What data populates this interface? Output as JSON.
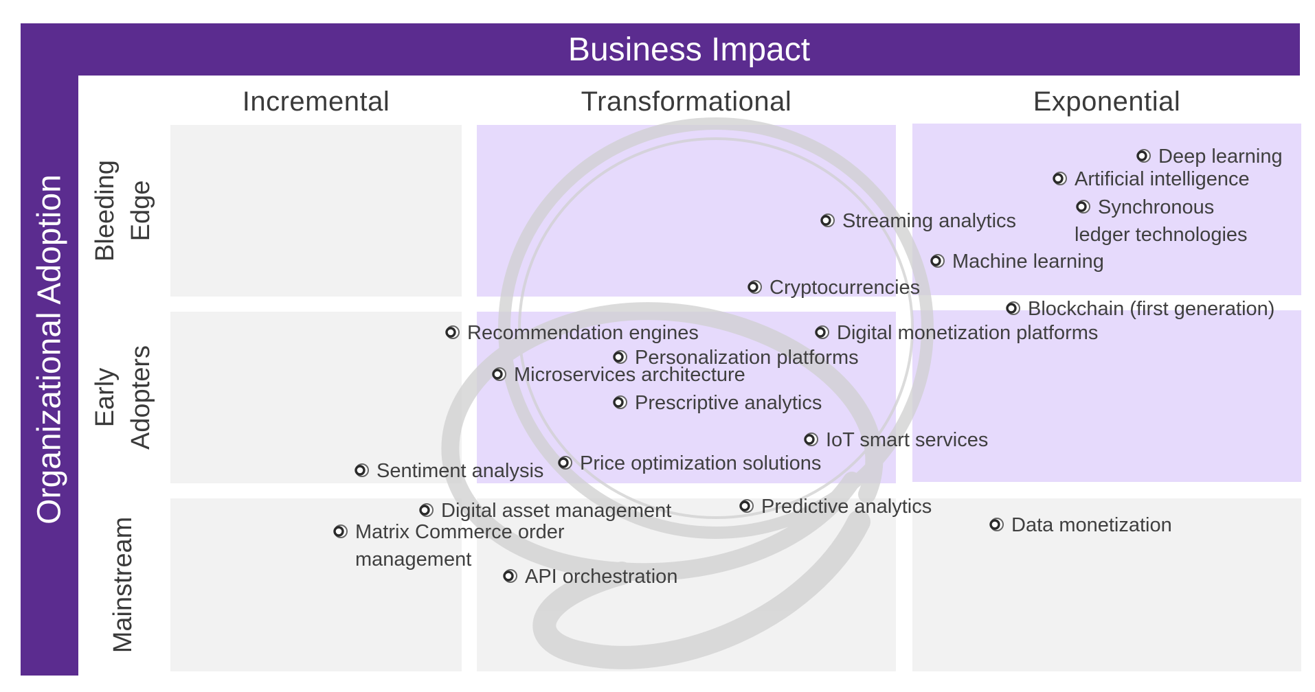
{
  "colors": {
    "banner": "#5b2c8f",
    "cell_grey": "#f2f2f2",
    "cell_purple": "#e6dafc",
    "watermark": "#d0d0d0"
  },
  "header": {
    "title": "Business Impact"
  },
  "side": {
    "title": "Organizational Adoption"
  },
  "columns": [
    "Incremental",
    "Transformational",
    "Exponential"
  ],
  "rows": [
    {
      "line1": "Bleeding",
      "line2": "Edge"
    },
    {
      "line1": "Early",
      "line2": "Adopters"
    },
    {
      "line1": "Mainstream",
      "line2": ""
    }
  ],
  "cells": [
    [
      "grey",
      "purple",
      "purple"
    ],
    [
      "grey",
      "purple",
      "purple"
    ],
    [
      "grey",
      "grey",
      "grey"
    ]
  ],
  "items": [
    {
      "id": "deep-learning",
      "line1": "Deep learning",
      "line2": "",
      "bullet": "ring-icon"
    },
    {
      "id": "artificial-intelligence",
      "line1": "Artificial intelligence",
      "line2": "",
      "bullet": "ring-icon"
    },
    {
      "id": "synchronous-ledger",
      "line1": "Synchronous",
      "line2": "ledger technologies",
      "bullet": "ring-icon"
    },
    {
      "id": "streaming-analytics",
      "line1": "Streaming analytics",
      "line2": "",
      "bullet": "ring-icon"
    },
    {
      "id": "machine-learning",
      "line1": "Machine learning",
      "line2": "",
      "bullet": "ring-icon"
    },
    {
      "id": "cryptocurrencies",
      "line1": "Cryptocurrencies",
      "line2": "",
      "bullet": "ring-icon"
    },
    {
      "id": "blockchain",
      "line1": "Blockchain (first generation)",
      "line2": "",
      "bullet": "ring-icon"
    },
    {
      "id": "recommendation-engines",
      "line1": "Recommendation engines",
      "line2": "",
      "bullet": "ring-icon"
    },
    {
      "id": "digital-monetization",
      "line1": "Digital monetization platforms",
      "line2": "",
      "bullet": "ring-icon"
    },
    {
      "id": "personalization-platforms",
      "line1": "Personalization platforms",
      "line2": "",
      "bullet": "ring-icon"
    },
    {
      "id": "microservices-architecture",
      "line1": "Microservices architecture",
      "line2": "",
      "bullet": "ring-icon"
    },
    {
      "id": "prescriptive-analytics",
      "line1": "Prescriptive analytics",
      "line2": "",
      "bullet": "ring-icon"
    },
    {
      "id": "iot-smart-services",
      "line1": "IoT smart services",
      "line2": "",
      "bullet": "ring-icon"
    },
    {
      "id": "sentiment-analysis",
      "line1": "Sentiment analysis",
      "line2": "",
      "bullet": "ring-icon"
    },
    {
      "id": "price-optimization",
      "line1": "Price optimization solutions",
      "line2": "",
      "bullet": "ring-icon"
    },
    {
      "id": "digital-asset-management",
      "line1": "Digital asset management",
      "line2": "",
      "bullet": "ring-icon"
    },
    {
      "id": "predictive-analytics",
      "line1": "Predictive analytics",
      "line2": "",
      "bullet": "ring-icon"
    },
    {
      "id": "matrix-commerce",
      "line1": "Matrix Commerce order",
      "line2": "management",
      "bullet": "ring-icon"
    },
    {
      "id": "data-monetization",
      "line1": "Data monetization",
      "line2": "",
      "bullet": "ring-icon"
    },
    {
      "id": "api-orchestration",
      "line1": "API orchestration",
      "line2": "",
      "bullet": "ring-icon"
    }
  ]
}
